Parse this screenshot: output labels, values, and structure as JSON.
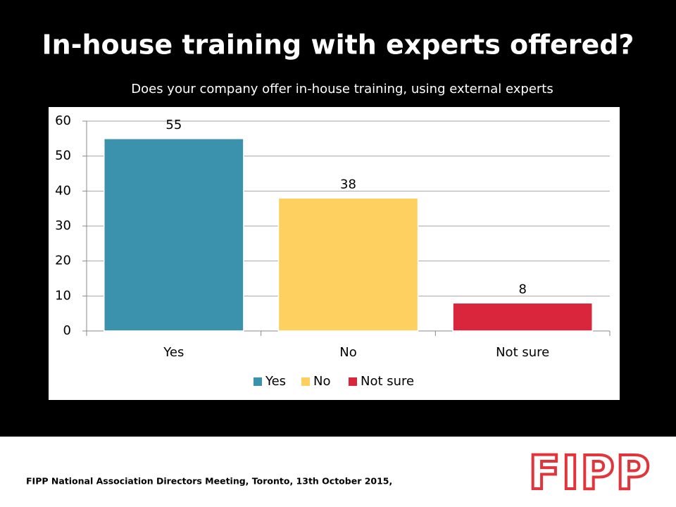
{
  "chart_data": {
    "type": "bar",
    "title": "In-house training with experts offered?",
    "subtitle": "Does your company offer in-house training, using external experts",
    "categories": [
      "Yes",
      "No",
      "Not sure"
    ],
    "values": [
      55,
      38,
      8
    ],
    "colors": [
      "#3a92ad",
      "#fdd05f",
      "#d9263d"
    ],
    "ylim": [
      0,
      60
    ],
    "yticks": [
      0,
      10,
      20,
      30,
      40,
      50,
      60
    ],
    "grid": true,
    "legend": "bottom"
  },
  "footer": {
    "text": "FIPP National Association Directors Meeting, Toronto, 13th October 2015,",
    "logo": "FIPP"
  }
}
